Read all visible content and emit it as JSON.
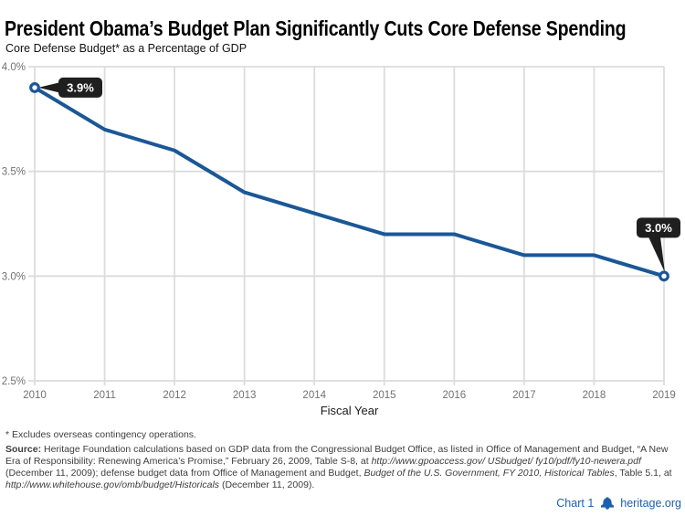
{
  "page": {
    "title": "President Obama’s Budget Plan Significantly Cuts Core Defense Spending",
    "subtitle": "Core Defense Budget* as a Percentage of GDP"
  },
  "chart_data": {
    "type": "line",
    "title": "Core Defense Budget* as a Percentage of GDP",
    "xlabel": "Fiscal Year",
    "ylabel": "",
    "x": [
      2010,
      2011,
      2012,
      2013,
      2014,
      2015,
      2016,
      2017,
      2018,
      2019
    ],
    "series": [
      {
        "name": "Core Defense Budget as a Percentage of GDP",
        "values": [
          3.9,
          3.7,
          3.6,
          3.4,
          3.3,
          3.2,
          3.2,
          3.1,
          3.1,
          3.0
        ]
      }
    ],
    "ylim": [
      2.5,
      4.0
    ],
    "yticks": [
      4.0,
      3.5,
      3.0,
      2.5
    ],
    "ytick_labels": [
      "4.0%",
      "3.5%",
      "3.0%",
      "2.5%"
    ],
    "grid": true,
    "legend": "none",
    "annotations": [
      {
        "point_index": 0,
        "label": "3.9%",
        "placement": "right"
      },
      {
        "point_index": 9,
        "label": "3.0%",
        "placement": "above-left"
      }
    ],
    "colors": {
      "line": "#1A5796",
      "grid": "#DCDCDC",
      "tick_text": "#717171",
      "callout_bg": "#1F1F1F",
      "callout_text": "#FFFFFF"
    }
  },
  "footnote": "* Excludes overseas contingency operations.",
  "source": {
    "label": "Source:",
    "segments": [
      {
        "t": " Heritage Foundation calculations based on GDP data from the Congressional Budget Office, as listed in Office of Management and Budget, “A New Era of Responsibility: Renewing America’s Promise,” February 26, 2009, Table S-8, at ",
        "i": false
      },
      {
        "t": "http://www.gpoaccess.gov/ USbudget/ fy10/pdf/fy10-newera.pdf",
        "i": true
      },
      {
        "t": " (December 11, 2009); defense budget data from Office of Management and Budget, ",
        "i": false
      },
      {
        "t": "Budget of the U.S. Government, FY 2010, Historical Tables",
        "i": true
      },
      {
        "t": ", Table 5.1, at ",
        "i": false
      },
      {
        "t": "http://www.whitehouse.gov/omb/budget/Historicals",
        "i": true
      },
      {
        "t": " (December 11, 2009).",
        "i": false
      }
    ]
  },
  "footer": {
    "chart_label": "Chart 1",
    "brand": "heritage.org",
    "brand_color": "#1C5FAF",
    "bell_icon": "liberty-bell-icon"
  }
}
